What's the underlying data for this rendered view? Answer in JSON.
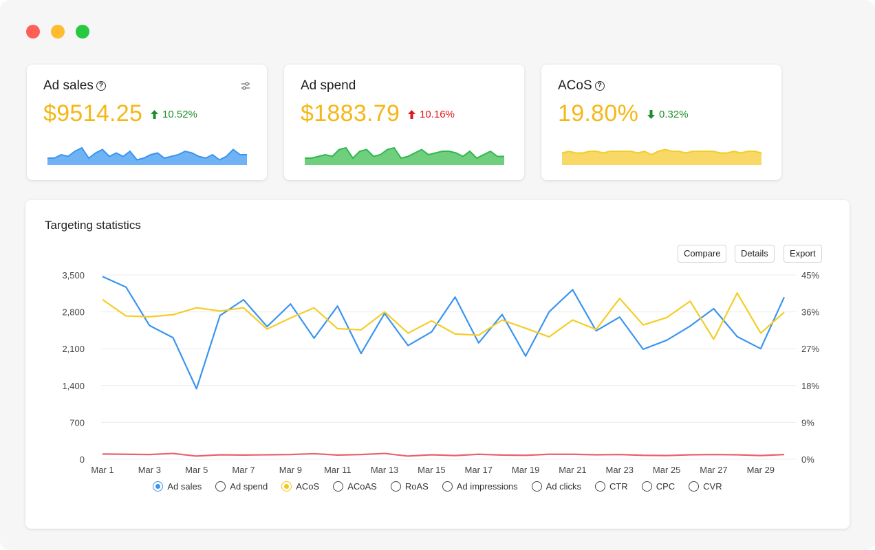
{
  "cards": [
    {
      "title": "Ad sales",
      "value": "$9514.25",
      "change": "10.52%",
      "direction": "up",
      "change_color": "#1d8f2a",
      "spark_color": "#3a94f0",
      "spark_fill": "#6fb3f5",
      "spark": [
        4,
        4,
        6,
        5,
        8,
        10,
        4,
        7,
        9,
        5,
        7,
        5,
        8,
        3,
        4,
        6,
        7,
        4,
        5,
        6,
        8,
        7,
        5,
        4,
        6,
        3,
        5,
        9,
        6,
        6
      ]
    },
    {
      "title": "Ad spend",
      "value": "$1883.79",
      "change": "10.16%",
      "direction": "up",
      "change_color": "#e3141b",
      "spark_color": "#2fb84a",
      "spark_fill": "#6fcf7f",
      "spark": [
        4,
        4,
        5,
        6,
        5,
        9,
        10,
        4,
        8,
        9,
        5,
        6,
        9,
        10,
        4,
        5,
        7,
        9,
        6,
        7,
        8,
        8,
        7,
        5,
        8,
        4,
        6,
        8,
        5,
        5
      ]
    },
    {
      "title": "ACoS",
      "value": "19.80%",
      "change": "0.32%",
      "direction": "down",
      "change_color": "#1d8f2a",
      "spark_color": "#f3cd27",
      "spark_fill": "#f8d867",
      "spark": [
        7,
        8,
        7,
        7,
        8,
        8,
        7,
        8,
        8,
        8,
        8,
        7,
        8,
        6,
        8,
        9,
        8,
        8,
        7,
        8,
        8,
        8,
        8,
        7,
        7,
        8,
        7,
        8,
        8,
        7
      ]
    }
  ],
  "panel": {
    "title": "Targeting statistics",
    "buttons": {
      "compare": "Compare",
      "details": "Details",
      "export": "Export"
    }
  },
  "chart_data": {
    "type": "line",
    "x": [
      "Mar 1",
      "Mar 2",
      "Mar 3",
      "Mar 4",
      "Mar 5",
      "Mar 6",
      "Mar 7",
      "Mar 8",
      "Mar 9",
      "Mar 10",
      "Mar 11",
      "Mar 12",
      "Mar 13",
      "Mar 14",
      "Mar 15",
      "Mar 16",
      "Mar 17",
      "Mar 18",
      "Mar 19",
      "Mar 20",
      "Mar 21",
      "Mar 22",
      "Mar 23",
      "Mar 24",
      "Mar 25",
      "Mar 26",
      "Mar 27",
      "Mar 28",
      "Mar 29",
      "Mar 30"
    ],
    "x_tick_labels": [
      "Mar 1",
      "Mar 3",
      "Mar 5",
      "Mar 7",
      "Mar 9",
      "Mar 11",
      "Mar 13",
      "Mar 15",
      "Mar 17",
      "Mar 19",
      "Mar 21",
      "Mar 23",
      "Mar 25",
      "Mar 27",
      "Mar 29"
    ],
    "y_left_ticks": [
      "0",
      "700",
      "1,400",
      "2,100",
      "2,800",
      "3,500"
    ],
    "y_left_lim": [
      0,
      3500
    ],
    "y_right_ticks": [
      "0%",
      "9%",
      "18%",
      "27%",
      "36%",
      "45%"
    ],
    "y_right_lim": [
      0,
      45
    ],
    "grid": true,
    "series": [
      {
        "name": "Ad sales",
        "axis": "left",
        "color": "#3a94f0",
        "values": [
          3470,
          3270,
          2540,
          2310,
          1340,
          2730,
          3030,
          2520,
          2950,
          2300,
          2910,
          2010,
          2770,
          2160,
          2420,
          3080,
          2210,
          2750,
          1960,
          2800,
          3220,
          2440,
          2700,
          2090,
          2260,
          2530,
          2860,
          2330,
          2100,
          3080
        ]
      },
      {
        "name": "ACoS",
        "axis": "right",
        "color": "#f3cd27",
        "values": [
          39.0,
          35.0,
          34.8,
          35.3,
          37.0,
          36.2,
          37.0,
          31.8,
          34.5,
          37.0,
          31.9,
          31.6,
          36.0,
          30.8,
          33.8,
          30.6,
          30.3,
          34.0,
          32.0,
          29.9,
          34.0,
          31.7,
          39.3,
          32.8,
          34.6,
          38.6,
          29.3,
          40.6,
          30.8,
          35.9
        ]
      },
      {
        "name": "",
        "axis": "left",
        "color": "#ec5f70",
        "values": [
          100,
          95,
          90,
          110,
          60,
          85,
          80,
          85,
          90,
          105,
          80,
          90,
          110,
          60,
          85,
          70,
          95,
          80,
          75,
          95,
          95,
          85,
          90,
          75,
          70,
          85,
          90,
          85,
          70,
          90
        ]
      }
    ]
  },
  "legend": [
    {
      "label": "Ad sales",
      "state": "checked",
      "color": "#3a94f0"
    },
    {
      "label": "Ad spend",
      "state": "unchecked",
      "color": "#444444"
    },
    {
      "label": "ACoS",
      "state": "checked",
      "color": "#f5c518"
    },
    {
      "label": "ACoAS",
      "state": "unchecked",
      "color": "#444444"
    },
    {
      "label": "RoAS",
      "state": "unchecked",
      "color": "#444444"
    },
    {
      "label": "Ad impressions",
      "state": "unchecked",
      "color": "#444444"
    },
    {
      "label": "Ad clicks",
      "state": "unchecked",
      "color": "#444444"
    },
    {
      "label": "CTR",
      "state": "unchecked",
      "color": "#444444"
    },
    {
      "label": "CPC",
      "state": "unchecked",
      "color": "#444444"
    },
    {
      "label": "CVR",
      "state": "unchecked",
      "color": "#444444"
    }
  ]
}
